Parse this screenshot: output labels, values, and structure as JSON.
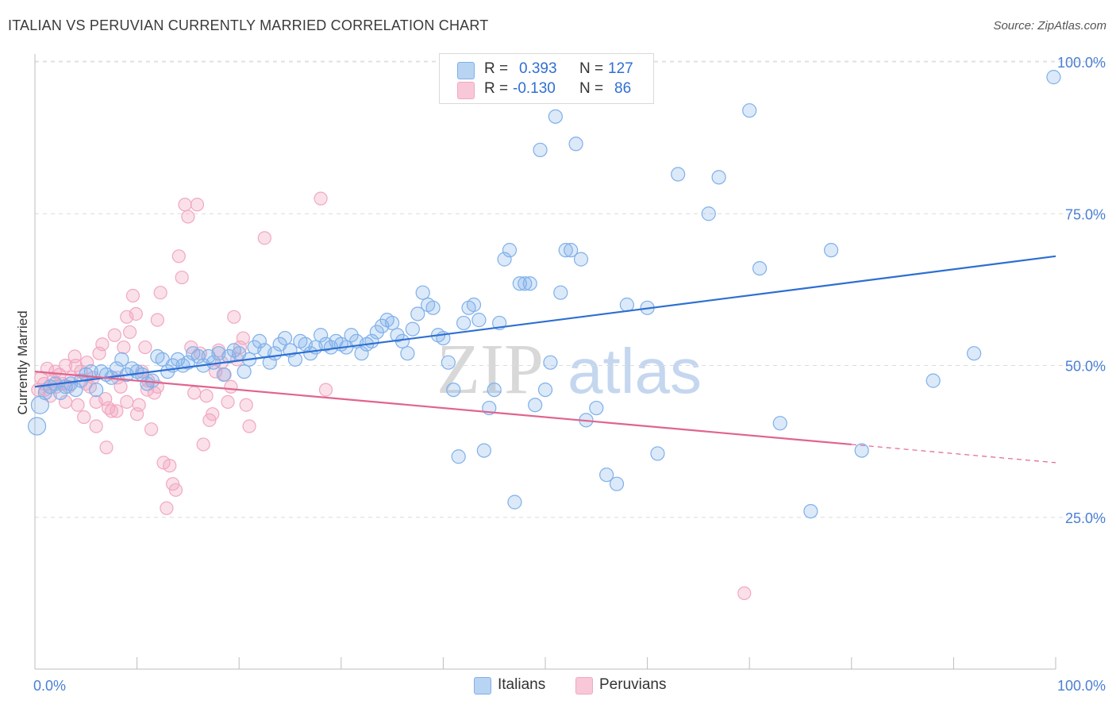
{
  "title": "ITALIAN VS PERUVIAN CURRENTLY MARRIED CORRELATION CHART",
  "source": "Source: ZipAtlas.com",
  "watermark": {
    "zip": "ZIP",
    "atlas": "atlas"
  },
  "legend": {
    "rows": [
      {
        "r_label": "R =",
        "r_value": "0.393",
        "n_label": "N =",
        "n_value": "127"
      },
      {
        "r_label": "R =",
        "r_value": "-0.130",
        "n_label": "N =",
        "n_value": "86"
      }
    ]
  },
  "bottom_legend": {
    "italians": "Italians",
    "peruvians": "Peruvians"
  },
  "chart_data": {
    "type": "scatter",
    "title": "ITALIAN VS PERUVIAN CURRENTLY MARRIED CORRELATION CHART",
    "xlabel": "",
    "ylabel": "Currently Married",
    "xlim": [
      0,
      100
    ],
    "ylim": [
      0,
      104
    ],
    "x_tick_labels": [
      "0.0%",
      "100.0%"
    ],
    "y_ticks": [
      25,
      50,
      75,
      100
    ],
    "y_tick_labels": [
      "25.0%",
      "50.0%",
      "75.0%",
      "100.0%"
    ],
    "grid": true,
    "legend_position": "top-center",
    "colors": {
      "italians": "#7fb0ea",
      "italians_line": "#2d6fd2",
      "peruvians": "#f2a7c1",
      "peruvians_line": "#e0648f"
    },
    "series": [
      {
        "name": "Italians",
        "r": 0.393,
        "n": 127,
        "trend": {
          "x": [
            0,
            100
          ],
          "y": [
            46.5,
            68.0
          ]
        },
        "points": [
          [
            0.2,
            40.0
          ],
          [
            0.5,
            43.5
          ],
          [
            1.0,
            45.5
          ],
          [
            1.5,
            46.5
          ],
          [
            2.0,
            47.0
          ],
          [
            2.5,
            45.5
          ],
          [
            3.0,
            46.5
          ],
          [
            3.5,
            47.0
          ],
          [
            4.0,
            46.0
          ],
          [
            4.5,
            47.5
          ],
          [
            5.0,
            48.5
          ],
          [
            5.5,
            49.0
          ],
          [
            6.0,
            46.0
          ],
          [
            6.5,
            49.0
          ],
          [
            7.0,
            48.5
          ],
          [
            7.5,
            48.0
          ],
          [
            8.0,
            49.5
          ],
          [
            8.5,
            51.0
          ],
          [
            9.0,
            48.5
          ],
          [
            9.5,
            49.5
          ],
          [
            10.0,
            49.0
          ],
          [
            10.5,
            48.5
          ],
          [
            11.0,
            47.0
          ],
          [
            11.5,
            47.5
          ],
          [
            12.0,
            51.5
          ],
          [
            12.5,
            51.0
          ],
          [
            13.0,
            49.0
          ],
          [
            13.5,
            50.0
          ],
          [
            14.0,
            51.0
          ],
          [
            14.5,
            50.0
          ],
          [
            15.0,
            50.5
          ],
          [
            15.5,
            52.0
          ],
          [
            16.0,
            51.5
          ],
          [
            16.5,
            50.0
          ],
          [
            17.0,
            51.5
          ],
          [
            17.5,
            50.5
          ],
          [
            18.0,
            52.0
          ],
          [
            18.5,
            48.5
          ],
          [
            19.0,
            51.5
          ],
          [
            19.5,
            52.5
          ],
          [
            20.0,
            52.0
          ],
          [
            20.5,
            49.0
          ],
          [
            21.0,
            51.0
          ],
          [
            21.5,
            53.0
          ],
          [
            22.0,
            54.0
          ],
          [
            22.5,
            52.5
          ],
          [
            23.0,
            50.5
          ],
          [
            23.5,
            52.0
          ],
          [
            24.0,
            53.5
          ],
          [
            24.5,
            54.5
          ],
          [
            25.0,
            52.5
          ],
          [
            25.5,
            51.0
          ],
          [
            26.0,
            54.0
          ],
          [
            26.5,
            53.5
          ],
          [
            27.0,
            52.0
          ],
          [
            27.5,
            53.0
          ],
          [
            28.0,
            55.0
          ],
          [
            28.5,
            53.5
          ],
          [
            29.0,
            53.0
          ],
          [
            29.5,
            54.0
          ],
          [
            30.0,
            53.5
          ],
          [
            30.5,
            53.0
          ],
          [
            31.0,
            55.0
          ],
          [
            31.5,
            54.0
          ],
          [
            32.0,
            52.0
          ],
          [
            32.5,
            53.5
          ],
          [
            33.0,
            54.0
          ],
          [
            33.5,
            55.5
          ],
          [
            34.0,
            56.5
          ],
          [
            34.5,
            57.5
          ],
          [
            35.0,
            57.0
          ],
          [
            35.5,
            55.0
          ],
          [
            36.0,
            54.0
          ],
          [
            36.5,
            52.0
          ],
          [
            37.0,
            56.0
          ],
          [
            37.5,
            58.5
          ],
          [
            38.0,
            62.0
          ],
          [
            38.5,
            60.0
          ],
          [
            39.0,
            59.5
          ],
          [
            39.5,
            55.0
          ],
          [
            40.0,
            54.5
          ],
          [
            40.5,
            50.5
          ],
          [
            41.0,
            46.0
          ],
          [
            41.5,
            35.0
          ],
          [
            42.0,
            57.0
          ],
          [
            42.5,
            59.5
          ],
          [
            43.0,
            60.0
          ],
          [
            43.5,
            57.5
          ],
          [
            44.0,
            36.0
          ],
          [
            44.5,
            43.0
          ],
          [
            45.0,
            46.0
          ],
          [
            45.5,
            57.0
          ],
          [
            46.0,
            67.5
          ],
          [
            46.5,
            69.0
          ],
          [
            47.0,
            27.5
          ],
          [
            47.5,
            63.5
          ],
          [
            48.0,
            63.5
          ],
          [
            48.5,
            63.5
          ],
          [
            49.0,
            43.5
          ],
          [
            49.5,
            85.5
          ],
          [
            50.0,
            46.0
          ],
          [
            50.5,
            50.5
          ],
          [
            51.0,
            91.0
          ],
          [
            51.5,
            62.0
          ],
          [
            52.0,
            69.0
          ],
          [
            52.5,
            69.0
          ],
          [
            53.0,
            86.5
          ],
          [
            53.5,
            67.5
          ],
          [
            54.0,
            41.0
          ],
          [
            55.0,
            43.0
          ],
          [
            56.0,
            32.0
          ],
          [
            57.0,
            30.5
          ],
          [
            58.0,
            60.0
          ],
          [
            60.0,
            59.5
          ],
          [
            61.0,
            35.5
          ],
          [
            63.0,
            81.5
          ],
          [
            66.0,
            75.0
          ],
          [
            67.0,
            81.0
          ],
          [
            70.0,
            92.0
          ],
          [
            71.0,
            66.0
          ],
          [
            73.0,
            40.5
          ],
          [
            76.0,
            26.0
          ],
          [
            78.0,
            69.0
          ],
          [
            81.0,
            36.0
          ],
          [
            88.0,
            47.5
          ],
          [
            92.0,
            52.0
          ],
          [
            99.8,
            97.5
          ]
        ]
      },
      {
        "name": "Peruvians",
        "r": -0.13,
        "n": 86,
        "trend": {
          "x": [
            0,
            80
          ],
          "y": [
            49.0,
            37.0
          ]
        },
        "trend_dashed": {
          "x": [
            80,
            100
          ],
          "y": [
            37.0,
            34.0
          ]
        },
        "points": [
          [
            0.3,
            46.0
          ],
          [
            0.6,
            48.0
          ],
          [
            0.9,
            47.0
          ],
          [
            1.2,
            49.5
          ],
          [
            1.5,
            45.0
          ],
          [
            1.8,
            47.5
          ],
          [
            2.1,
            46.5
          ],
          [
            2.4,
            48.5
          ],
          [
            2.7,
            47.0
          ],
          [
            3.0,
            50.0
          ],
          [
            3.3,
            46.5
          ],
          [
            3.6,
            48.0
          ],
          [
            3.9,
            51.5
          ],
          [
            4.2,
            43.5
          ],
          [
            4.5,
            49.0
          ],
          [
            4.8,
            41.5
          ],
          [
            5.1,
            50.5
          ],
          [
            5.4,
            46.5
          ],
          [
            5.7,
            48.0
          ],
          [
            6.0,
            44.0
          ],
          [
            6.3,
            52.0
          ],
          [
            6.6,
            53.5
          ],
          [
            6.9,
            44.5
          ],
          [
            7.2,
            43.0
          ],
          [
            7.5,
            42.5
          ],
          [
            7.8,
            55.0
          ],
          [
            8.1,
            48.0
          ],
          [
            8.4,
            46.5
          ],
          [
            8.7,
            53.0
          ],
          [
            9.0,
            58.0
          ],
          [
            9.3,
            55.5
          ],
          [
            9.6,
            61.5
          ],
          [
            9.9,
            58.5
          ],
          [
            10.2,
            43.5
          ],
          [
            10.5,
            49.0
          ],
          [
            10.8,
            53.0
          ],
          [
            11.1,
            47.5
          ],
          [
            11.4,
            39.5
          ],
          [
            11.7,
            45.5
          ],
          [
            12.0,
            57.5
          ],
          [
            12.3,
            62.0
          ],
          [
            12.6,
            34.0
          ],
          [
            12.9,
            26.5
          ],
          [
            13.2,
            33.5
          ],
          [
            13.5,
            30.5
          ],
          [
            13.8,
            29.5
          ],
          [
            14.1,
            68.0
          ],
          [
            14.4,
            64.5
          ],
          [
            14.7,
            76.5
          ],
          [
            15.0,
            74.5
          ],
          [
            15.3,
            53.0
          ],
          [
            15.6,
            45.5
          ],
          [
            15.9,
            76.5
          ],
          [
            16.2,
            52.0
          ],
          [
            16.5,
            37.0
          ],
          [
            16.8,
            45.0
          ],
          [
            17.1,
            41.0
          ],
          [
            17.4,
            42.0
          ],
          [
            17.7,
            49.0
          ],
          [
            18.0,
            52.5
          ],
          [
            18.3,
            50.5
          ],
          [
            18.6,
            48.5
          ],
          [
            18.9,
            44.0
          ],
          [
            19.2,
            46.5
          ],
          [
            19.5,
            58.0
          ],
          [
            19.8,
            51.0
          ],
          [
            20.1,
            53.0
          ],
          [
            20.4,
            54.5
          ],
          [
            20.7,
            43.5
          ],
          [
            21.0,
            40.0
          ],
          [
            22.5,
            71.0
          ],
          [
            28.0,
            77.5
          ],
          [
            28.5,
            46.0
          ],
          [
            2.0,
            49.0
          ],
          [
            3.0,
            44.0
          ],
          [
            4.0,
            50.0
          ],
          [
            5.0,
            47.0
          ],
          [
            6.0,
            40.0
          ],
          [
            7.0,
            36.5
          ],
          [
            8.0,
            42.5
          ],
          [
            9.0,
            44.0
          ],
          [
            10.0,
            42.0
          ],
          [
            11.0,
            46.0
          ],
          [
            12.0,
            46.5
          ],
          [
            1.0,
            46.0
          ],
          [
            69.5,
            12.5
          ]
        ]
      }
    ]
  }
}
